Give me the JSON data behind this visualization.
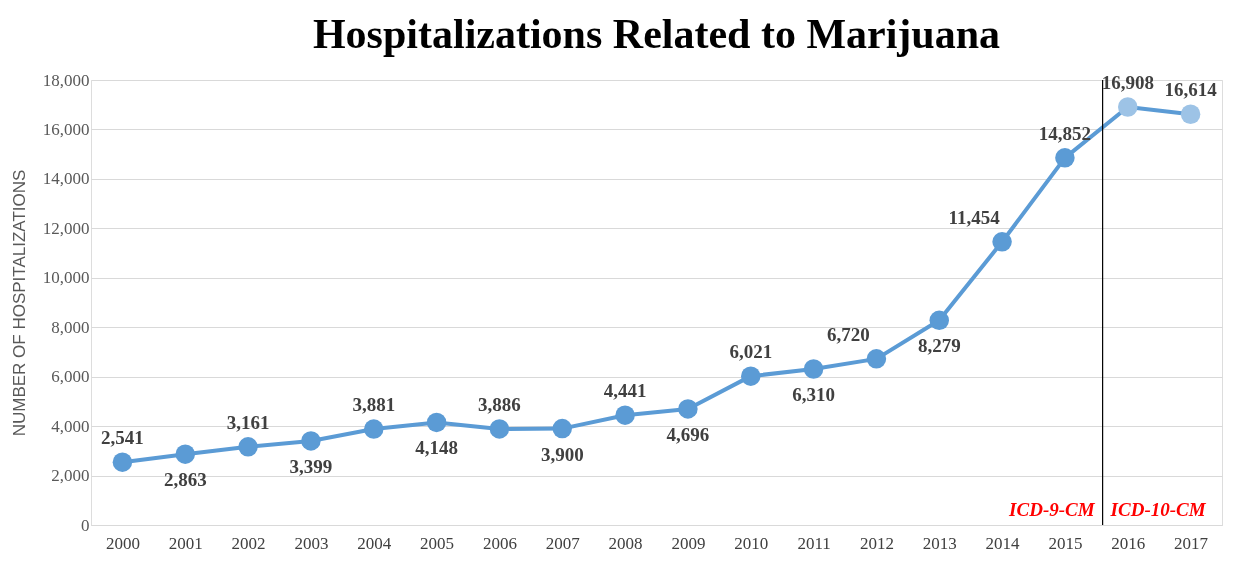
{
  "chart_data": {
    "type": "line",
    "title": "Hospitalizations Related to Marijuana",
    "ylabel": "NUMBER OF HOSPITALIZATIONS",
    "x": [
      2000,
      2001,
      2002,
      2003,
      2004,
      2005,
      2006,
      2007,
      2008,
      2009,
      2010,
      2011,
      2012,
      2013,
      2014,
      2015,
      2016,
      2017
    ],
    "series": [
      {
        "color": "#5b9bd5",
        "colors": [
          "#5b9bd5",
          "#5b9bd5",
          "#5b9bd5",
          "#5b9bd5",
          "#5b9bd5",
          "#5b9bd5",
          "#5b9bd5",
          "#5b9bd5",
          "#5b9bd5",
          "#5b9bd5",
          "#5b9bd5",
          "#5b9bd5",
          "#5b9bd5",
          "#5b9bd5",
          "#5b9bd5",
          "#5b9bd5",
          "#9dc3e6",
          "#9dc3e6"
        ],
        "values": [
          2541,
          2863,
          3161,
          3399,
          3881,
          4148,
          3886,
          3900,
          4441,
          4696,
          6021,
          6310,
          6720,
          8279,
          11454,
          14852,
          16908,
          16614
        ],
        "value_labels": [
          "2,541",
          "2,863",
          "3,161",
          "3,399",
          "3,881",
          "4,148",
          "3,886",
          "3,900",
          "4,441",
          "4,696",
          "6,021",
          "6,310",
          "6,720",
          "8,279",
          "11,454",
          "14,852",
          "16,908",
          "16,614"
        ]
      }
    ],
    "xlim": [
      1999.5,
      2017.5
    ],
    "xticks": [
      2000,
      2001,
      2002,
      2003,
      2004,
      2005,
      2006,
      2007,
      2008,
      2009,
      2010,
      2011,
      2012,
      2013,
      2014,
      2015,
      2016,
      2017
    ],
    "ylim": [
      0,
      18000
    ],
    "yticks": [
      {
        "value": 0,
        "label": "0"
      },
      {
        "value": 2000,
        "label": "2,000"
      },
      {
        "value": 4000,
        "label": "4,000"
      },
      {
        "value": 6000,
        "label": "6,000"
      },
      {
        "value": 8000,
        "label": "8,000"
      },
      {
        "value": 10000,
        "label": "10,000"
      },
      {
        "value": 12000,
        "label": "12,000"
      },
      {
        "value": 14000,
        "label": "14,000"
      },
      {
        "value": 16000,
        "label": "16,000"
      },
      {
        "value": 18000,
        "label": "18,000"
      }
    ],
    "grid": "y",
    "marker": "circle",
    "line_style": "solid",
    "ref_lines": [
      {
        "axis": "x",
        "value": 2015.6,
        "label": null,
        "color": "#000000"
      }
    ],
    "annotations": [
      "ICD-9-CM",
      "ICD-10-CM"
    ]
  }
}
